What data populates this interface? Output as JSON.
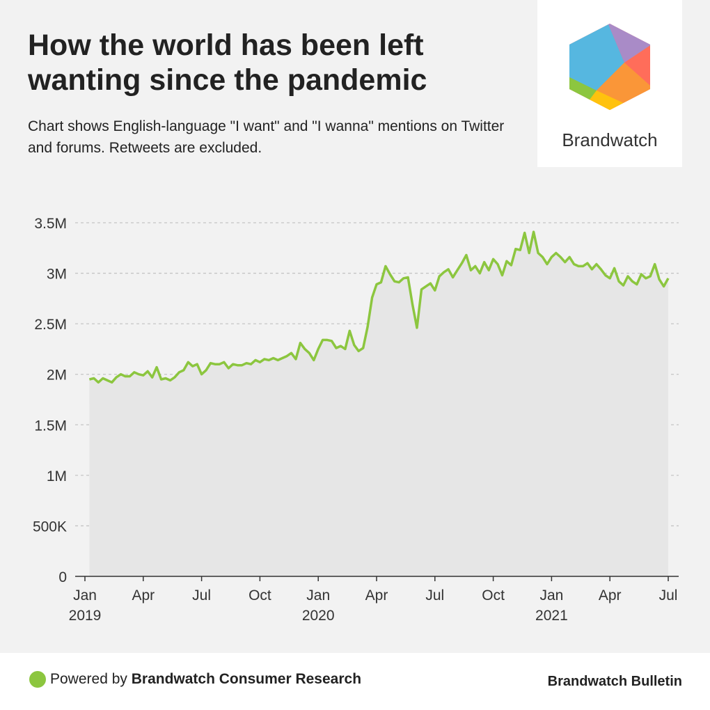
{
  "chart_data": {
    "type": "line",
    "title": "How the world has been left wanting since the pandemic",
    "subtitle": "Chart shows English-language \"I want\" and \"I wanna\" mentions on Twitter and forums. Retweets are excluded.",
    "categories": [
      "Jan 2019",
      null,
      null,
      null,
      null,
      null,
      null,
      null,
      null,
      null,
      null,
      null,
      null,
      "Apr",
      null,
      null,
      null,
      null,
      null,
      null,
      null,
      null,
      null,
      null,
      null,
      null,
      "Jul",
      null,
      null,
      null,
      null,
      null,
      null,
      null,
      null,
      null,
      null,
      null,
      null,
      "Oct",
      null,
      null,
      null,
      null,
      null,
      null,
      null,
      null,
      null,
      null,
      null,
      null,
      "Jan 2020",
      null,
      null,
      null,
      null,
      null,
      null,
      null,
      null,
      null,
      null,
      null,
      null,
      "Apr",
      null,
      null,
      null,
      null,
      null,
      null,
      null,
      null,
      null,
      null,
      null,
      null,
      "Jul",
      null,
      null,
      null,
      null,
      null,
      null,
      null,
      null,
      null,
      null,
      null,
      null,
      "Oct",
      null,
      null,
      null,
      null,
      null,
      null,
      null,
      null,
      null,
      null,
      null,
      null,
      "Jan 2021",
      null,
      null,
      null,
      null,
      null,
      null,
      null,
      null,
      null,
      null,
      null,
      null,
      "Apr",
      null,
      null,
      null,
      null,
      null,
      null,
      null,
      null,
      null,
      null,
      null,
      null,
      "Jul"
    ],
    "series": [
      {
        "name": "Mentions",
        "color": "#8cc63f",
        "values": [
          null,
          1950000,
          1960000,
          1920000,
          1960000,
          1940000,
          1920000,
          1970000,
          2000000,
          1980000,
          1980000,
          2020000,
          2000000,
          1990000,
          2030000,
          1970000,
          2070000,
          1950000,
          1960000,
          1940000,
          1970000,
          2020000,
          2040000,
          2120000,
          2080000,
          2100000,
          2000000,
          2040000,
          2110000,
          2100000,
          2100000,
          2120000,
          2060000,
          2100000,
          2090000,
          2090000,
          2110000,
          2100000,
          2140000,
          2120000,
          2150000,
          2140000,
          2160000,
          2140000,
          2160000,
          2180000,
          2210000,
          2150000,
          2310000,
          2250000,
          2210000,
          2140000,
          2250000,
          2340000,
          2340000,
          2330000,
          2260000,
          2280000,
          2250000,
          2430000,
          2290000,
          2230000,
          2260000,
          2470000,
          2760000,
          2890000,
          2910000,
          3070000,
          2990000,
          2920000,
          2910000,
          2950000,
          2960000,
          2690000,
          2460000,
          2840000,
          2870000,
          2900000,
          2830000,
          2970000,
          3010000,
          3040000,
          2960000,
          3030000,
          3100000,
          3180000,
          3030000,
          3070000,
          3000000,
          3110000,
          3030000,
          3140000,
          3090000,
          2980000,
          3120000,
          3080000,
          3240000,
          3230000,
          3400000,
          3200000,
          3410000,
          3200000,
          3160000,
          3090000,
          3160000,
          3200000,
          3160000,
          3110000,
          3160000,
          3090000,
          3070000,
          3070000,
          3100000,
          3040000,
          3090000,
          3040000,
          2980000,
          2950000,
          3050000,
          2920000,
          2880000,
          2970000,
          2920000,
          2890000,
          2990000,
          2950000,
          2970000,
          3090000,
          2940000,
          2870000,
          2950000
        ]
      }
    ],
    "ylim": [
      0,
      3500000
    ],
    "yticks": [
      0,
      {
        "value": 500000,
        "label": "500K"
      },
      {
        "value": 1000000,
        "label": "1M"
      },
      {
        "value": 1500000,
        "label": "1.5M"
      },
      {
        "value": 2000000,
        "label": "2M"
      },
      {
        "value": 2500000,
        "label": "2.5M"
      },
      {
        "value": 3000000,
        "label": "3M"
      },
      {
        "value": 3500000,
        "label": "3.5M"
      }
    ],
    "grid": true
  },
  "logo": {
    "text": "Brandwatch"
  },
  "footer": {
    "powered_prefix": "Powered by",
    "powered_brand": "Brandwatch Consumer Research",
    "credit": "Brandwatch Bulletin"
  }
}
